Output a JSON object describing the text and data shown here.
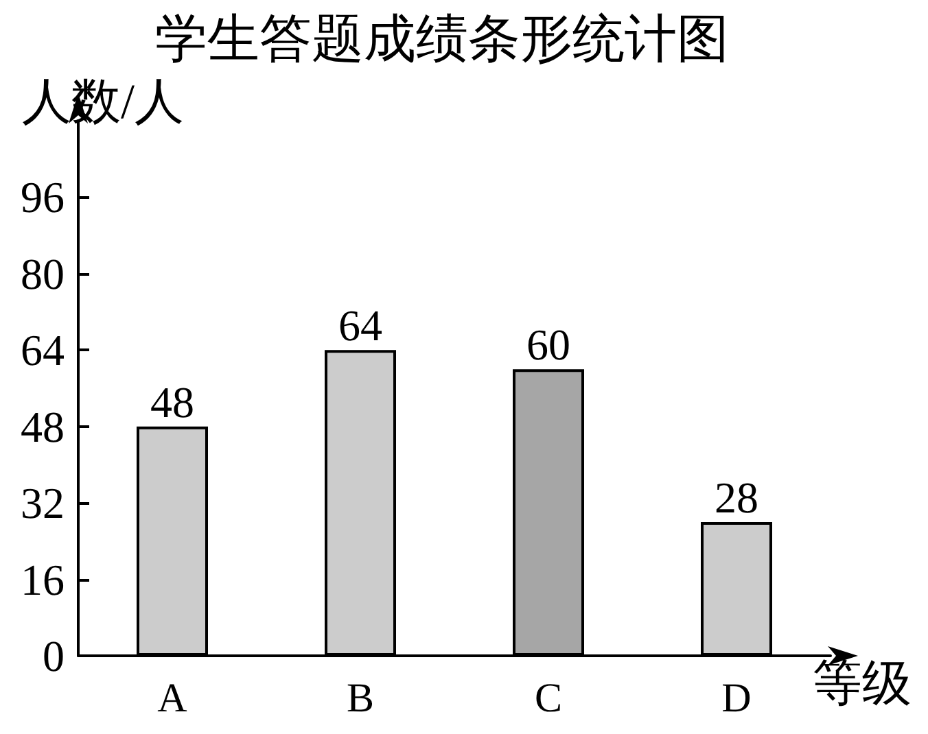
{
  "chart_data": {
    "type": "bar",
    "title": "学生答题成绩条形统计图",
    "ylabel": "人数/人",
    "xlabel": "等级",
    "categories": [
      "A",
      "B",
      "C",
      "D"
    ],
    "values": [
      48,
      64,
      60,
      28
    ],
    "colors": [
      "#cccccc",
      "#cccccc",
      "#a6a6a6",
      "#cccccc"
    ],
    "ylim": [
      0,
      112
    ],
    "yticks": [
      0,
      16,
      32,
      48,
      64,
      80,
      96
    ],
    "grid": false,
    "data_labels": true
  }
}
